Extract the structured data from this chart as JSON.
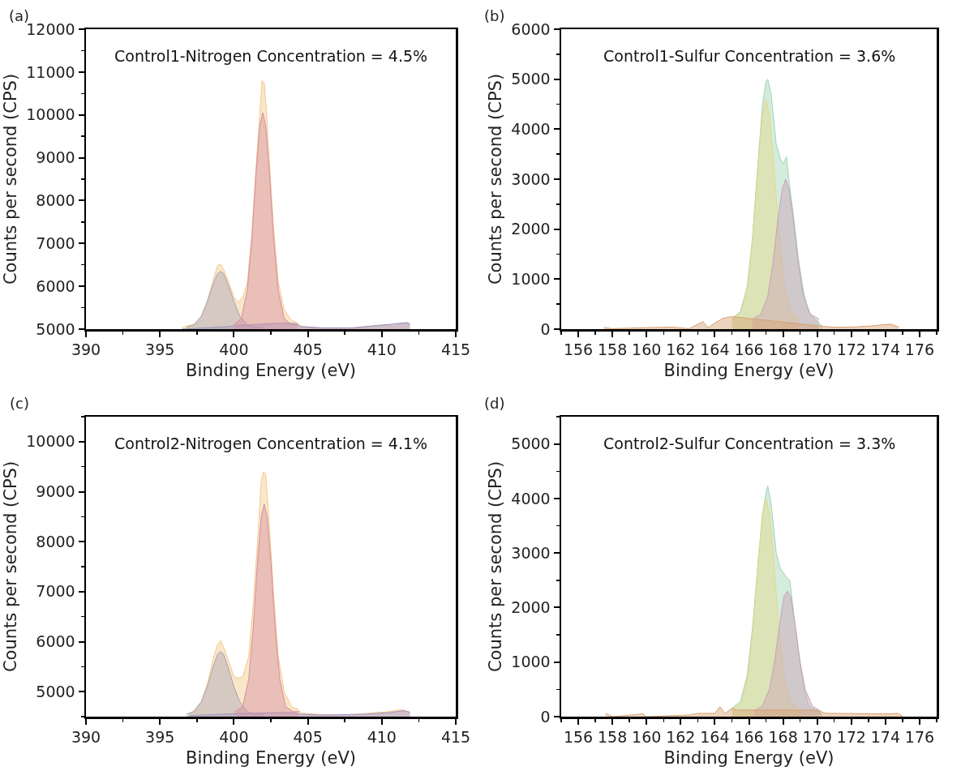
{
  "chart_data": [
    {
      "type": "area",
      "xlabel": "Binding Energy (eV)",
      "ylabel": "Counts per second (CPS)",
      "annotations": [
        "(a)",
        "Control1-Nitrogen Concentration = 4.5%"
      ],
      "xlim": [
        390,
        415
      ],
      "xticks": [
        390,
        395,
        400,
        405,
        410,
        415
      ],
      "ylim": [
        5000,
        12000
      ],
      "yticks": [
        5000,
        6000,
        7000,
        8000,
        9000,
        10000,
        11000,
        12000
      ],
      "series": [
        {
          "color": "#f5c98a",
          "x": [
            396.5,
            396.8,
            397.3,
            397.8,
            398.2,
            398.6,
            398.9,
            399.1,
            399.3,
            399.6,
            400.0,
            400.3,
            400.6,
            400.9,
            401.2,
            401.5,
            401.75,
            401.9,
            402.05,
            402.2,
            402.4,
            402.7,
            403.0,
            403.4,
            403.9,
            404.3,
            404.6,
            405.5,
            407,
            408.5,
            409.5,
            410.3,
            410.8,
            411.3,
            411.7,
            411.9
          ],
          "values": [
            5030,
            5070,
            5110,
            5300,
            5640,
            6150,
            6480,
            6520,
            6400,
            6150,
            5750,
            5620,
            5750,
            6050,
            7150,
            8800,
            10000,
            10800,
            10750,
            10100,
            8900,
            7300,
            6100,
            5450,
            5200,
            5150,
            5060,
            5030,
            5020,
            5030,
            5080,
            5100,
            5060,
            5130,
            5150,
            5100
          ]
        },
        {
          "color": "#9b8fc7",
          "x": [
            396.5,
            397.5,
            398.5,
            399.5,
            400.5,
            401.5,
            402.5,
            403.5,
            404.2,
            404.5,
            406,
            408,
            409.5,
            410.5,
            411.2,
            411.8,
            411.9
          ],
          "values": [
            5000,
            5020,
            5040,
            5060,
            5090,
            5110,
            5130,
            5140,
            5130,
            5060,
            5030,
            5030,
            5080,
            5110,
            5140,
            5150,
            5100
          ]
        },
        {
          "color": "#a9a3b8",
          "x": [
            396.8,
            397.3,
            397.8,
            398.2,
            398.6,
            398.9,
            399.1,
            399.3,
            399.6,
            400.0,
            400.4,
            400.9,
            401.4,
            402.0
          ],
          "values": [
            5050,
            5100,
            5300,
            5650,
            6050,
            6300,
            6350,
            6300,
            6050,
            5650,
            5300,
            5100,
            5050,
            5050
          ]
        },
        {
          "color": "#d48fa0",
          "x": [
            400.0,
            400.5,
            400.9,
            401.2,
            401.5,
            401.75,
            401.95,
            402.15,
            402.4,
            402.7,
            403.0,
            403.4,
            403.9,
            404.3
          ],
          "values": [
            5100,
            5250,
            5900,
            7050,
            8650,
            9750,
            10050,
            9750,
            8650,
            7050,
            5900,
            5250,
            5100,
            5100
          ]
        }
      ]
    },
    {
      "type": "area",
      "xlabel": "Binding Energy (eV)",
      "ylabel": "Counts per second (CPS)",
      "annotations": [
        "(b)",
        "Control1-Sulfur Concentration = 3.6%"
      ],
      "xlim": [
        155,
        177
      ],
      "xticks": [
        156,
        158,
        160,
        162,
        164,
        166,
        168,
        170,
        172,
        174,
        176
      ],
      "ylim": [
        0,
        6000
      ],
      "yticks": [
        0,
        1000,
        2000,
        3000,
        4000,
        5000,
        6000
      ],
      "series": [
        {
          "color": "#9fd4b4",
          "x": [
            165.0,
            165.5,
            165.9,
            166.2,
            166.5,
            166.8,
            167.0,
            167.1,
            167.3,
            167.6,
            167.85,
            168.0,
            168.2,
            168.35,
            168.6,
            168.9,
            169.2,
            169.5,
            169.9,
            170.3
          ],
          "values": [
            210,
            350,
            850,
            1800,
            3200,
            4500,
            4950,
            5000,
            4700,
            3700,
            3400,
            3300,
            3450,
            2950,
            2300,
            1400,
            750,
            350,
            180,
            60
          ]
        },
        {
          "color": "#e6d98a",
          "x": [
            165.05,
            165.55,
            165.95,
            166.25,
            166.55,
            166.8,
            167.0,
            167.2,
            167.45,
            167.75,
            168.05,
            168.45,
            168.95
          ],
          "values": [
            200,
            350,
            900,
            1950,
            3350,
            4300,
            4600,
            4300,
            3350,
            1950,
            900,
            350,
            200
          ]
        },
        {
          "color": "#c9a0b8",
          "x": [
            166.2,
            166.7,
            167.1,
            167.4,
            167.7,
            167.95,
            168.15,
            168.35,
            168.6,
            168.9,
            169.2,
            169.6,
            170.1
          ],
          "values": [
            200,
            300,
            650,
            1300,
            2200,
            2800,
            3000,
            2800,
            2200,
            1300,
            650,
            300,
            200
          ]
        },
        {
          "color": "#d8a070",
          "x": [
            157.5,
            158,
            160,
            161.5,
            162.5,
            163.3,
            163.6,
            164,
            164.5,
            165,
            170.5,
            171,
            172,
            173,
            174.3,
            174.8
          ],
          "values": [
            30,
            10,
            30,
            40,
            10,
            150,
            30,
            120,
            220,
            250,
            50,
            40,
            40,
            60,
            100,
            40
          ]
        }
      ]
    },
    {
      "type": "area",
      "xlabel": "Binding Energy (eV)",
      "ylabel": "Counts per second (CPS)",
      "annotations": [
        "(c)",
        "Control2-Nitrogen Concentration = 4.1%"
      ],
      "xlim": [
        390,
        415
      ],
      "xticks": [
        390,
        395,
        400,
        405,
        410,
        415
      ],
      "ylim": [
        4500,
        10500
      ],
      "yticks": [
        5000,
        6000,
        7000,
        8000,
        9000,
        10000
      ],
      "series": [
        {
          "color": "#f5c98a",
          "x": [
            397.0,
            397.3,
            397.8,
            398.2,
            398.6,
            398.9,
            399.1,
            399.3,
            399.6,
            400.0,
            400.3,
            400.6,
            401.0,
            401.3,
            401.6,
            401.85,
            402.0,
            402.15,
            402.4,
            402.7,
            403.0,
            403.4,
            403.9,
            404.3,
            404.6,
            406,
            408,
            409.5,
            410.5,
            411.2,
            411.9
          ],
          "values": [
            4560,
            4620,
            4800,
            5150,
            5650,
            5950,
            6020,
            5900,
            5650,
            5300,
            5270,
            5300,
            5700,
            6700,
            8000,
            9200,
            9400,
            9350,
            8300,
            6900,
            5700,
            5000,
            4700,
            4650,
            4570,
            4540,
            4540,
            4580,
            4600,
            4640,
            4600
          ]
        },
        {
          "color": "#9b8fc7",
          "x": [
            397,
            398.5,
            400,
            401.5,
            403,
            404,
            404.5,
            406,
            409,
            410.5,
            411.5,
            411.9
          ],
          "values": [
            4520,
            4540,
            4560,
            4570,
            4580,
            4580,
            4550,
            4530,
            4550,
            4580,
            4620,
            4580
          ]
        },
        {
          "color": "#a9a3b8",
          "x": [
            396.8,
            397.3,
            397.8,
            398.2,
            398.6,
            398.9,
            399.1,
            399.3,
            399.6,
            400.0,
            400.4,
            400.9,
            401.4,
            402.0
          ],
          "values": [
            4550,
            4600,
            4800,
            5100,
            5500,
            5750,
            5800,
            5750,
            5500,
            5100,
            4800,
            4600,
            4550,
            4550
          ]
        },
        {
          "color": "#d48fa0",
          "x": [
            400.1,
            400.6,
            401.0,
            401.3,
            401.6,
            401.85,
            402.05,
            402.25,
            402.5,
            402.8,
            403.1,
            403.5,
            404.0,
            404.4
          ],
          "values": [
            4600,
            4700,
            5250,
            6250,
            7600,
            8500,
            8750,
            8500,
            7600,
            6250,
            5250,
            4700,
            4600,
            4600
          ]
        }
      ]
    },
    {
      "type": "area",
      "xlabel": "Binding Energy (eV)",
      "ylabel": "Counts per second (CPS)",
      "annotations": [
        "(d)",
        "Control2-Sulfur Concentration = 3.3%"
      ],
      "xlim": [
        155,
        177
      ],
      "xticks": [
        156,
        158,
        160,
        162,
        164,
        166,
        168,
        170,
        172,
        174,
        176
      ],
      "ylim": [
        0,
        5500
      ],
      "yticks": [
        0,
        1000,
        2000,
        3000,
        4000,
        5000
      ],
      "series": [
        {
          "color": "#9fd4b4",
          "x": [
            165.0,
            165.5,
            165.9,
            166.2,
            166.5,
            166.8,
            167.0,
            167.1,
            167.3,
            167.6,
            167.85,
            168.0,
            168.2,
            168.4,
            168.6,
            168.9,
            169.2,
            169.5,
            169.9,
            170.3
          ],
          "values": [
            150,
            280,
            750,
            1600,
            2700,
            3700,
            4100,
            4230,
            3900,
            3000,
            2700,
            2650,
            2550,
            2500,
            1950,
            1200,
            550,
            200,
            120,
            40
          ]
        },
        {
          "color": "#e6d98a",
          "x": [
            165.05,
            165.55,
            165.95,
            166.25,
            166.55,
            166.8,
            167.0,
            167.2,
            167.45,
            167.75,
            168.05,
            168.45,
            168.95
          ],
          "values": [
            150,
            250,
            750,
            1650,
            2900,
            3750,
            4000,
            3750,
            2900,
            1650,
            750,
            250,
            150
          ]
        },
        {
          "color": "#c9a0b8",
          "x": [
            166.3,
            166.8,
            167.2,
            167.5,
            167.8,
            168.05,
            168.25,
            168.45,
            168.7,
            169.0,
            169.3,
            169.7,
            170.2
          ],
          "values": [
            100,
            200,
            500,
            1000,
            1700,
            2200,
            2300,
            2200,
            1700,
            1000,
            500,
            200,
            100
          ]
        },
        {
          "color": "#d8a070",
          "x": [
            157.6,
            158,
            159.8,
            160,
            162.5,
            163,
            164,
            164.3,
            164.6,
            165,
            165.3,
            170,
            170.5,
            171,
            174.2,
            174.7,
            175
          ],
          "values": [
            60,
            0,
            50,
            0,
            30,
            60,
            60,
            180,
            60,
            150,
            120,
            120,
            60,
            60,
            50,
            60,
            10
          ]
        }
      ]
    }
  ]
}
